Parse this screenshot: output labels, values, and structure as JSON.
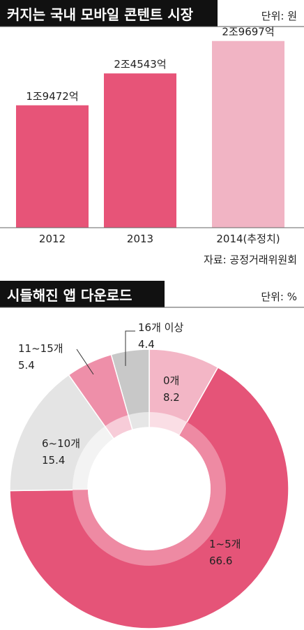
{
  "chart_data": [
    {
      "type": "bar",
      "title": "커지는 국내 모바일 콘텐트 시장",
      "unit": "단위: 원",
      "categories": [
        "2012",
        "2013",
        "2014(추정치)"
      ],
      "values": [
        19472,
        24543,
        29697
      ],
      "value_labels": [
        "1조9472억",
        "2조4543억",
        "2조9697억"
      ],
      "ylim": [
        0,
        32000
      ],
      "source": "자료: 공정거래위원회",
      "colors": [
        "#e75478",
        "#e75478",
        "#f1b4c4"
      ]
    },
    {
      "type": "pie",
      "title": "시들해진 앱 다운로드",
      "unit": "단위: %",
      "slices": [
        {
          "label": "0개",
          "value": 8.2,
          "value_label": "8.2",
          "color": "#f3b6c6"
        },
        {
          "label": "1~5개",
          "value": 66.6,
          "value_label": "66.6",
          "color": "#e55478"
        },
        {
          "label": "6~10개",
          "value": 15.4,
          "value_label": "15.4",
          "color": "#e4e4e4"
        },
        {
          "label": "11~15개",
          "value": 5.4,
          "value_label": "5.4",
          "color": "#ee8fa9"
        },
        {
          "label": "16개 이상",
          "value": 4.4,
          "value_label": "4.4",
          "color": "#c8c8c8"
        }
      ]
    }
  ]
}
